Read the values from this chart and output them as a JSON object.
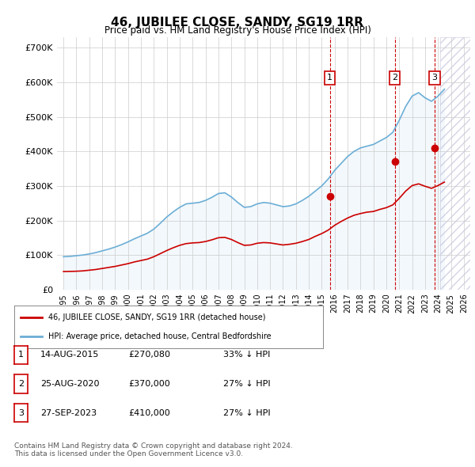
{
  "title": "46, JUBILEE CLOSE, SANDY, SG19 1RR",
  "subtitle": "Price paid vs. HM Land Registry's House Price Index (HPI)",
  "hpi_years": [
    1995,
    1995.5,
    1996,
    1996.5,
    1997,
    1997.5,
    1998,
    1998.5,
    1999,
    1999.5,
    2000,
    2000.5,
    2001,
    2001.5,
    2002,
    2002.5,
    2003,
    2003.5,
    2004,
    2004.5,
    2005,
    2005.5,
    2006,
    2006.5,
    2007,
    2007.5,
    2008,
    2008.5,
    2009,
    2009.5,
    2010,
    2010.5,
    2011,
    2011.5,
    2012,
    2012.5,
    2013,
    2013.5,
    2014,
    2014.5,
    2015,
    2015.5,
    2016,
    2016.5,
    2017,
    2017.5,
    2018,
    2018.5,
    2019,
    2019.5,
    2020,
    2020.5,
    2021,
    2021.5,
    2022,
    2022.5,
    2023,
    2023.5,
    2024,
    2024.5
  ],
  "hpi_values": [
    95000,
    96000,
    98000,
    100000,
    103000,
    107000,
    112000,
    117000,
    123000,
    130000,
    138000,
    147000,
    155000,
    163000,
    175000,
    192000,
    210000,
    225000,
    238000,
    248000,
    250000,
    252000,
    258000,
    267000,
    278000,
    280000,
    268000,
    252000,
    238000,
    240000,
    248000,
    252000,
    250000,
    245000,
    240000,
    242000,
    248000,
    258000,
    270000,
    285000,
    300000,
    320000,
    345000,
    365000,
    385000,
    400000,
    410000,
    415000,
    420000,
    430000,
    440000,
    455000,
    490000,
    530000,
    560000,
    570000,
    555000,
    545000,
    560000,
    580000
  ],
  "price_years": [
    1995,
    1995.5,
    1996,
    1996.5,
    1997,
    1997.5,
    1998,
    1998.5,
    1999,
    1999.5,
    2000,
    2000.5,
    2001,
    2001.5,
    2002,
    2002.5,
    2003,
    2003.5,
    2004,
    2004.5,
    2005,
    2005.5,
    2006,
    2006.5,
    2007,
    2007.5,
    2008,
    2008.5,
    2009,
    2009.5,
    2010,
    2010.5,
    2011,
    2011.5,
    2012,
    2012.5,
    2013,
    2013.5,
    2014,
    2014.5,
    2015,
    2015.5,
    2016,
    2016.5,
    2017,
    2017.5,
    2018,
    2018.5,
    2019,
    2019.5,
    2020,
    2020.5,
    2021,
    2021.5,
    2022,
    2022.5,
    2023,
    2023.5,
    2024,
    2024.5
  ],
  "price_values": [
    52000,
    52500,
    53000,
    54000,
    56000,
    58000,
    61000,
    64000,
    67000,
    71000,
    75000,
    80000,
    84000,
    88000,
    95000,
    104000,
    113000,
    121000,
    128000,
    133000,
    135000,
    136000,
    139000,
    144000,
    150000,
    151000,
    145000,
    136000,
    128000,
    129000,
    134000,
    136000,
    135000,
    132000,
    129000,
    131000,
    134000,
    139000,
    145000,
    154000,
    162000,
    172000,
    186000,
    197000,
    207000,
    215000,
    220000,
    224000,
    226000,
    232000,
    237000,
    245000,
    264000,
    285000,
    301000,
    306000,
    299000,
    293000,
    301000,
    311000
  ],
  "sale_points": [
    {
      "year": 2015.62,
      "price": 270080,
      "label": "1"
    },
    {
      "year": 2020.65,
      "price": 370000,
      "label": "2"
    },
    {
      "year": 2023.75,
      "price": 410000,
      "label": "3"
    }
  ],
  "vline_dates": [
    2015.62,
    2020.65,
    2023.75
  ],
  "ylim": [
    0,
    730000
  ],
  "xlim": [
    1994.5,
    2026.5
  ],
  "yticks": [
    0,
    100000,
    200000,
    300000,
    400000,
    500000,
    600000,
    700000
  ],
  "ytick_labels": [
    "£0",
    "£100K",
    "£200K",
    "£300K",
    "£400K",
    "£500K",
    "£600K",
    "£700K"
  ],
  "xticks": [
    1995,
    1996,
    1997,
    1998,
    1999,
    2000,
    2001,
    2002,
    2003,
    2004,
    2005,
    2006,
    2007,
    2008,
    2009,
    2010,
    2011,
    2012,
    2013,
    2014,
    2015,
    2016,
    2017,
    2018,
    2019,
    2020,
    2021,
    2022,
    2023,
    2024,
    2025,
    2026
  ],
  "hpi_color": "#6baed6",
  "price_color": "#cc0000",
  "dot_color": "#cc0000",
  "vline_color": "#cc0000",
  "shade_color": "#deebf7",
  "legend1": "46, JUBILEE CLOSE, SANDY, SG19 1RR (detached house)",
  "legend2": "HPI: Average price, detached house, Central Bedfordshire",
  "table_rows": [
    {
      "num": "1",
      "date": "14-AUG-2015",
      "price": "£270,080",
      "hpi": "33% ↓ HPI"
    },
    {
      "num": "2",
      "date": "25-AUG-2020",
      "price": "£370,000",
      "hpi": "27% ↓ HPI"
    },
    {
      "num": "3",
      "date": "27-SEP-2023",
      "price": "£410,000",
      "hpi": "27% ↓ HPI"
    }
  ],
  "footer": "Contains HM Land Registry data © Crown copyright and database right 2024.\nThis data is licensed under the Open Government Licence v3.0.",
  "bg_color": "#ffffff",
  "grid_color": "#cccccc"
}
